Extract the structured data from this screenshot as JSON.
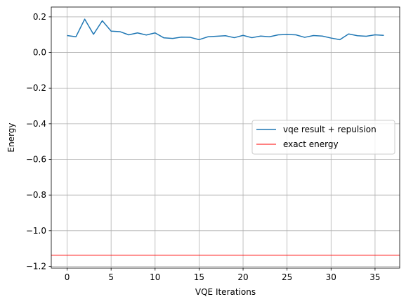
{
  "chart_data": {
    "type": "line",
    "title": "",
    "xlabel": "VQE Iterations",
    "ylabel": "Energy",
    "xlim": [
      -1.8,
      37.8
    ],
    "ylim": [
      -1.21,
      0.255
    ],
    "xticks": [
      0,
      5,
      10,
      15,
      20,
      25,
      30,
      35
    ],
    "xtick_labels": [
      "0",
      "5",
      "10",
      "15",
      "20",
      "25",
      "30",
      "35"
    ],
    "yticks": [
      0.2,
      0.0,
      -0.2,
      -0.4,
      -0.6,
      -0.8,
      -1.0,
      -1.2
    ],
    "ytick_labels": [
      "0.2",
      "0.0",
      "−0.2",
      "−0.4",
      "−0.6",
      "−0.8",
      "−1.0",
      "−1.2"
    ],
    "grid": true,
    "legend_position": "center-right",
    "series": [
      {
        "name": "vqe result + repulsion",
        "color": "#1f77b4",
        "x": [
          0,
          1,
          2,
          3,
          4,
          5,
          6,
          7,
          8,
          9,
          10,
          11,
          12,
          13,
          14,
          15,
          16,
          17,
          18,
          19,
          20,
          21,
          22,
          23,
          24,
          25,
          26,
          27,
          28,
          29,
          30,
          31,
          32,
          33,
          34,
          35,
          36
        ],
        "y": [
          0.095,
          0.088,
          0.187,
          0.102,
          0.178,
          0.12,
          0.117,
          0.099,
          0.11,
          0.098,
          0.11,
          0.082,
          0.079,
          0.086,
          0.085,
          0.072,
          0.088,
          0.091,
          0.094,
          0.083,
          0.096,
          0.083,
          0.092,
          0.088,
          0.099,
          0.101,
          0.099,
          0.085,
          0.095,
          0.092,
          0.081,
          0.072,
          0.104,
          0.094,
          0.091,
          0.099,
          0.096
        ]
      },
      {
        "name": "exact energy",
        "color": "#ff0000",
        "type": "hline",
        "y": -1.137
      }
    ]
  }
}
